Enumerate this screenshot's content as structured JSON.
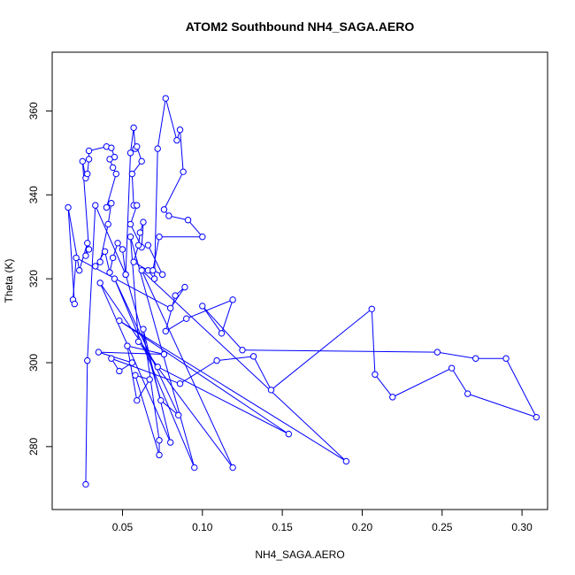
{
  "chart_data": {
    "type": "line",
    "title": "ATOM2 Southbound NH4_SAGA.AERO",
    "xlabel": "NH4_SAGA.AERO",
    "ylabel": "Theta (K)",
    "xlim": [
      0.006,
      0.316
    ],
    "ylim": [
      265,
      374
    ],
    "x_ticks": [
      0.05,
      0.1,
      0.15,
      0.2,
      0.25,
      0.3
    ],
    "x_tick_labels": [
      "0.05",
      "0.10",
      "0.15",
      "0.20",
      "0.25",
      "0.30"
    ],
    "y_ticks": [
      280,
      300,
      320,
      340,
      360
    ],
    "y_tick_labels": [
      "280",
      "300",
      "320",
      "340",
      "360"
    ],
    "grid": false,
    "marker": "open-circle",
    "line_color": "#0000ff",
    "series": [
      {
        "points": [
          [
            0.027,
            271.0
          ],
          [
            0.028,
            300.5
          ],
          [
            0.033,
            337.5
          ],
          [
            0.052,
            321.0
          ],
          [
            0.074,
            291.0
          ],
          [
            0.085,
            287.5
          ],
          [
            0.045,
            320.0
          ],
          [
            0.095,
            275.0
          ],
          [
            0.055,
            330.0
          ],
          [
            0.06,
            305.0
          ],
          [
            0.119,
            275.0
          ],
          [
            0.062,
            322.0
          ],
          [
            0.19,
            276.5
          ],
          [
            0.048,
            310.0
          ],
          [
            0.154,
            283.0
          ],
          [
            0.072,
            299.0
          ],
          [
            0.036,
            319.0
          ],
          [
            0.08,
            281.0
          ],
          [
            0.063,
            308.0
          ],
          [
            0.073,
            281.5
          ],
          [
            0.073,
            278.0
          ],
          [
            0.058,
            297.0
          ],
          [
            0.067,
            296.0
          ],
          [
            0.059,
            291.0
          ],
          [
            0.053,
            304.0
          ],
          [
            0.076,
            302.0
          ],
          [
            0.035,
            302.5
          ],
          [
            0.056,
            300.0
          ],
          [
            0.048,
            298.0
          ],
          [
            0.043,
            301.0
          ],
          [
            0.086,
            295.0
          ],
          [
            0.109,
            300.5
          ],
          [
            0.132,
            301.5
          ],
          [
            0.143,
            293.5
          ],
          [
            0.206,
            312.8
          ],
          [
            0.208,
            297.2
          ],
          [
            0.219,
            291.8
          ],
          [
            0.256,
            298.7
          ],
          [
            0.266,
            292.6
          ],
          [
            0.309,
            287.0
          ],
          [
            0.29,
            301.0
          ],
          [
            0.271,
            301.0
          ],
          [
            0.247,
            302.5
          ],
          [
            0.125,
            303.0
          ],
          [
            0.1,
            313.5
          ],
          [
            0.112,
            307.0
          ],
          [
            0.119,
            315.0
          ],
          [
            0.09,
            310.5
          ],
          [
            0.077,
            307.5
          ],
          [
            0.083,
            316.0
          ],
          [
            0.089,
            318.0
          ],
          [
            0.08,
            313.0
          ],
          [
            0.021,
            325.0
          ],
          [
            0.019,
            315.0
          ],
          [
            0.02,
            314.0
          ],
          [
            0.016,
            337.0
          ],
          [
            0.023,
            322.0
          ],
          [
            0.028,
            328.5
          ],
          [
            0.027,
            325.5
          ],
          [
            0.029,
            327.0
          ],
          [
            0.025,
            348.0
          ],
          [
            0.027,
            344.0
          ],
          [
            0.028,
            345.0
          ],
          [
            0.029,
            348.5
          ],
          [
            0.029,
            350.5
          ],
          [
            0.04,
            351.5
          ],
          [
            0.043,
            351.2
          ],
          [
            0.045,
            349.0
          ],
          [
            0.042,
            348.5
          ],
          [
            0.044,
            346.5
          ],
          [
            0.046,
            345.0
          ],
          [
            0.04,
            337.0
          ],
          [
            0.043,
            338.0
          ],
          [
            0.041,
            333.0
          ],
          [
            0.036,
            324.0
          ],
          [
            0.033,
            323.0
          ],
          [
            0.039,
            326.5
          ],
          [
            0.042,
            321.5
          ],
          [
            0.044,
            325.0
          ],
          [
            0.047,
            328.5
          ],
          [
            0.05,
            327.0
          ],
          [
            0.052,
            321.0
          ],
          [
            0.055,
            350.0
          ],
          [
            0.057,
            356.0
          ],
          [
            0.058,
            351.0
          ],
          [
            0.059,
            351.5
          ],
          [
            0.062,
            348.0
          ],
          [
            0.056,
            345.0
          ],
          [
            0.057,
            337.5
          ],
          [
            0.059,
            337.5
          ],
          [
            0.055,
            333.0
          ],
          [
            0.062,
            327.5
          ],
          [
            0.063,
            333.5
          ],
          [
            0.061,
            331.0
          ],
          [
            0.06,
            328.0
          ],
          [
            0.057,
            324.0
          ],
          [
            0.066,
            322.0
          ],
          [
            0.07,
            320.0
          ],
          [
            0.072,
            351.0
          ],
          [
            0.077,
            363.0
          ],
          [
            0.084,
            353.0
          ],
          [
            0.086,
            355.5
          ],
          [
            0.088,
            345.5
          ],
          [
            0.076,
            336.5
          ],
          [
            0.079,
            335.0
          ],
          [
            0.091,
            334.0
          ],
          [
            0.1,
            330.0
          ],
          [
            0.073,
            330.0
          ],
          [
            0.069,
            322.0
          ],
          [
            0.075,
            321.0
          ],
          [
            0.066,
            328.0
          ]
        ]
      }
    ]
  }
}
